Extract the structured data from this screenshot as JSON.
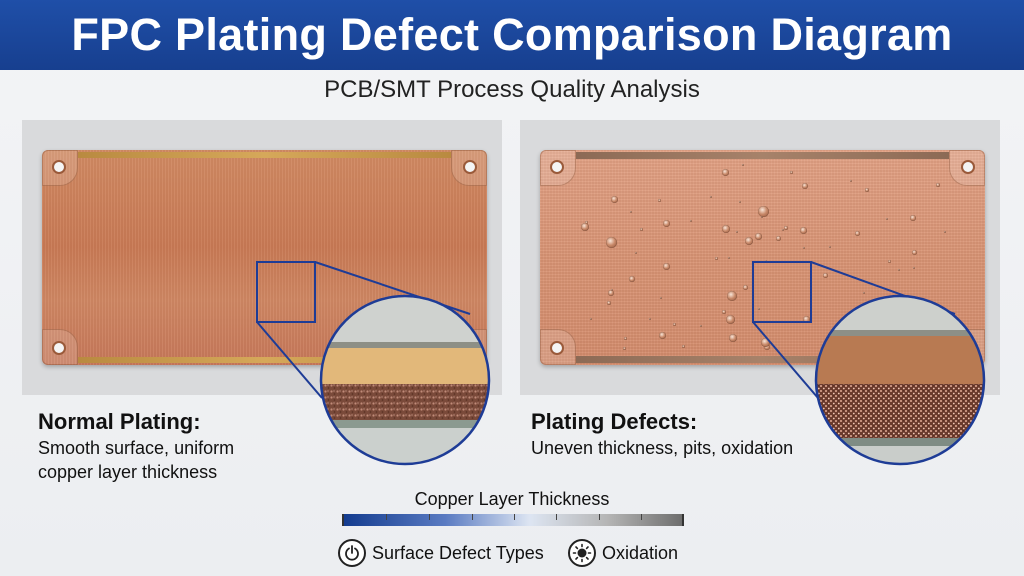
{
  "header": {
    "title": "FPC Plating Defect Comparison Diagram",
    "subtitle": "PCB/SMT Process Quality Analysis"
  },
  "panels": {
    "normal": {
      "title": "Normal Plating:",
      "desc_line1": "Smooth surface, uniform",
      "desc_line2": "copper layer thickness"
    },
    "defect": {
      "title": "Plating Defects:",
      "desc_line1": "Uneven thickness, pits, oxidation"
    }
  },
  "legend": {
    "scale_title": "Copper Layer Thickness",
    "items": [
      {
        "icon": "power-icon",
        "label": "Surface Defect Types"
      },
      {
        "icon": "sun-icon",
        "label": "Oxidation"
      }
    ]
  },
  "colors": {
    "banner": "#1f4fa8",
    "zoom_outline": "#1e3c96",
    "copper_normal": "#c97a55",
    "copper_defect": "#d99474"
  }
}
